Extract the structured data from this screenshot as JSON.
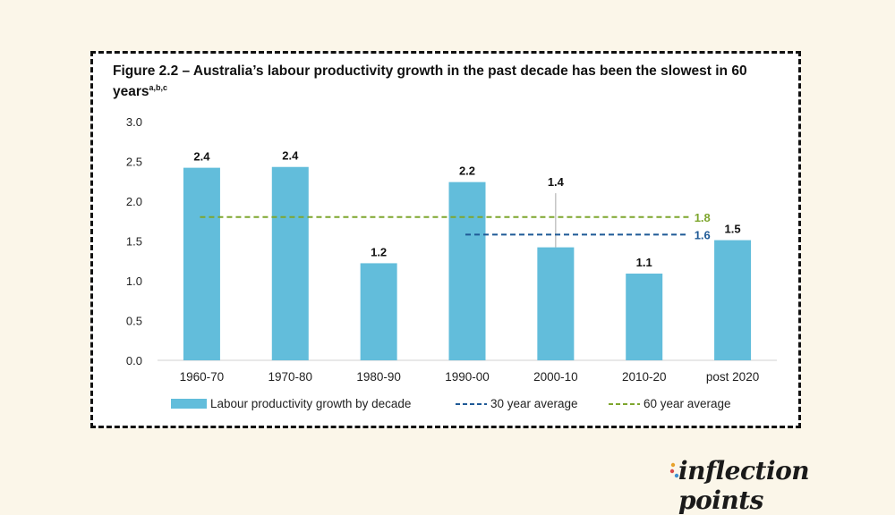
{
  "figure": {
    "title_main": "Figure 2.2 – Australia’s labour productivity growth in the past decade has been the slowest in 60 years",
    "title_superscript": "a,b,c"
  },
  "chart_data": {
    "type": "bar",
    "categories": [
      "1960-70",
      "1970-80",
      "1980-90",
      "1990-00",
      "2000-10",
      "2010-20",
      "post 2020"
    ],
    "series": [
      {
        "name": "Labour productivity growth by decade",
        "values": [
          2.42,
          2.43,
          1.22,
          2.24,
          1.42,
          1.09,
          1.51
        ],
        "color": "#62bddb"
      }
    ],
    "data_labels": [
      "2.4",
      "2.4",
      "1.2",
      "2.2",
      "1.4",
      "1.1",
      "1.5"
    ],
    "averages": [
      {
        "name": "30 year average",
        "value": 1.58,
        "label": "1.6",
        "start_category": "1990-00",
        "end_category": "2010-20",
        "color": "#1f5a96"
      },
      {
        "name": "60 year average",
        "value": 1.8,
        "label": "1.8",
        "start_category": "1960-70",
        "end_category": "2010-20",
        "color": "#7ea62e"
      }
    ],
    "error_bar": {
      "category": "2000-10",
      "low": 1.42,
      "high": 2.1
    },
    "ylim": [
      0,
      3
    ],
    "yticks": [
      "0.0",
      "0.5",
      "1.0",
      "1.5",
      "2.0",
      "2.5",
      "3.0"
    ],
    "ytick_values": [
      0,
      0.5,
      1,
      1.5,
      2,
      2.5,
      3
    ],
    "grid": false,
    "legend_position": "bottom"
  },
  "legend": {
    "bar_label": "Labour productivity growth by decade",
    "avg30_label": "30 year average",
    "avg60_label": "60 year average"
  },
  "brand": {
    "name": "inflection points"
  }
}
